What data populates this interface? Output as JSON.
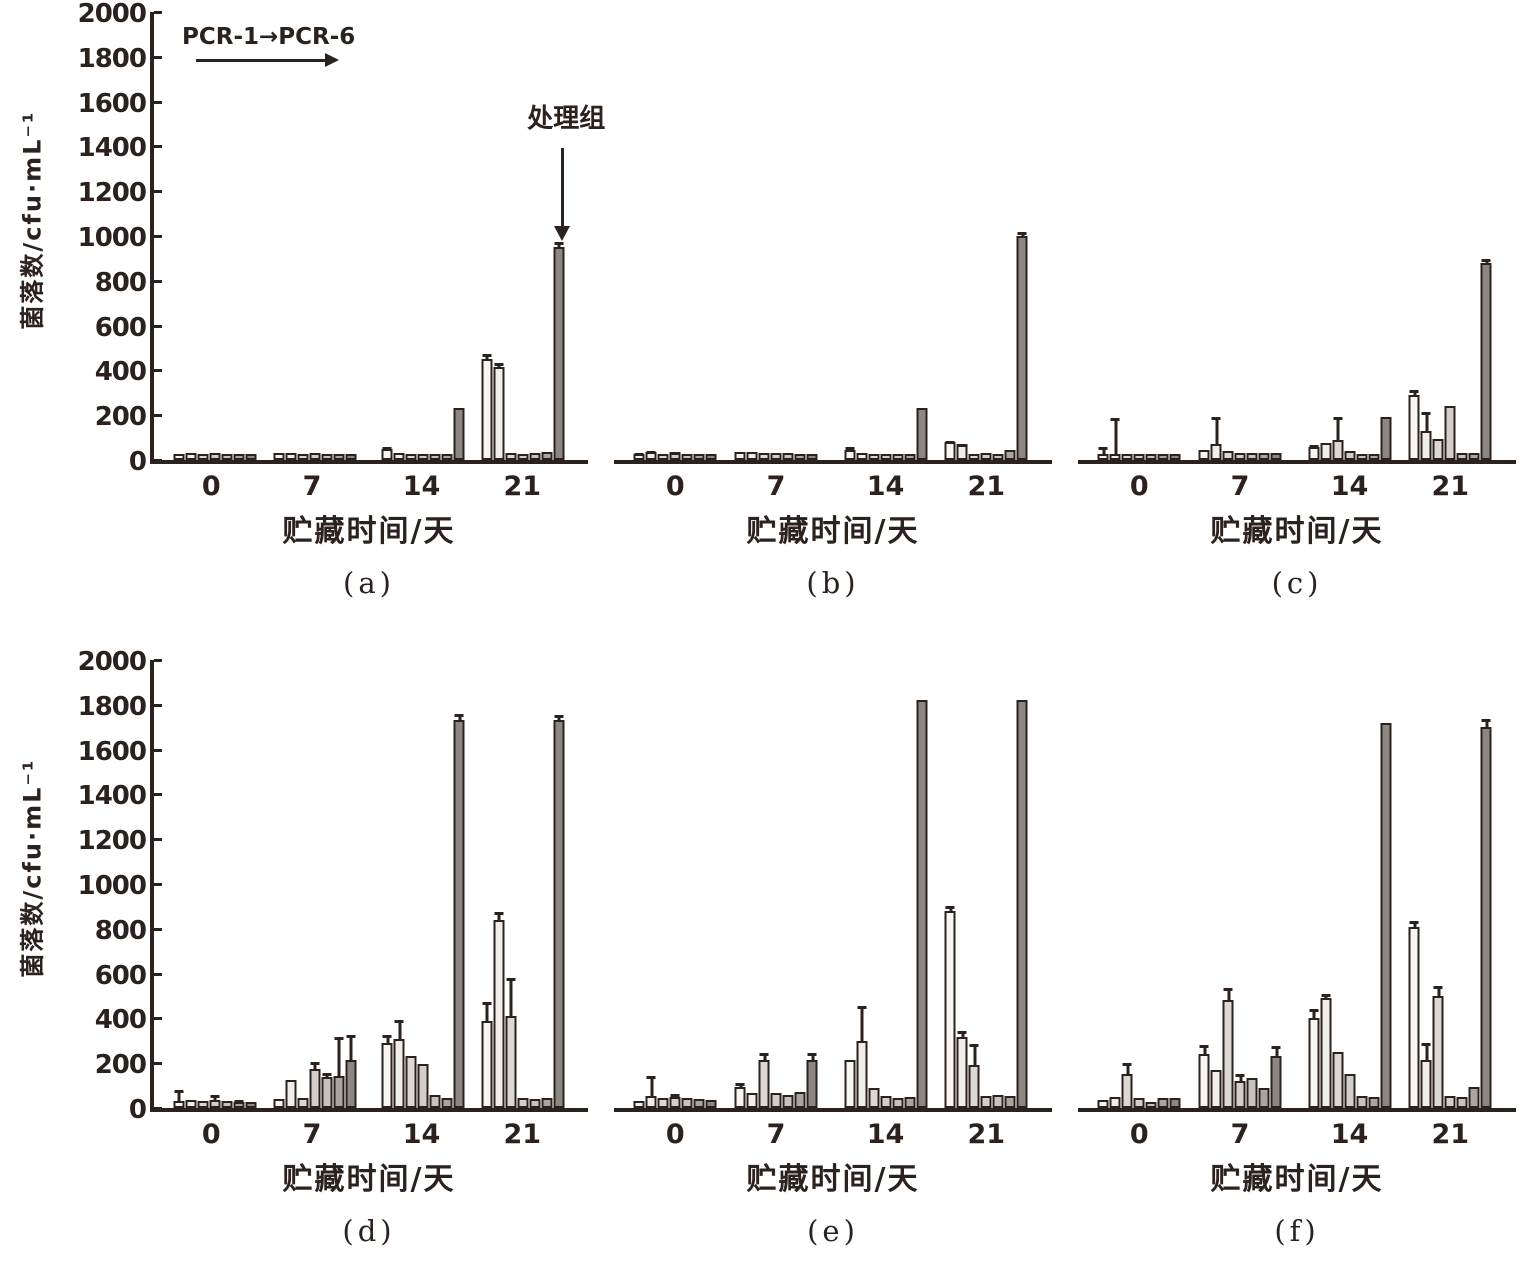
{
  "figure": {
    "legend_label": "PCR-1→PCR-6",
    "annotation": "处理组",
    "x_axis_title": "贮藏时间/天",
    "y_axis_title": "菌落数/cfu·mL⁻¹",
    "x_categories": [
      "0",
      "7",
      "14",
      "21"
    ],
    "y_ticks": [
      "2000",
      "1800",
      "1600",
      "1400",
      "1200",
      "1000",
      "800",
      "600",
      "400",
      "200",
      "0"
    ],
    "colors": {
      "ink": "#2b211d",
      "bar_series": [
        "#f7f6f3",
        "#efeeea",
        "#dcd9d4",
        "#d2cfca",
        "#c6c3bd",
        "#a9a6a0",
        "#8b8781"
      ],
      "treatment_bar": "#8b8781"
    }
  },
  "chart_data": [
    {
      "type": "bar",
      "panel": "a",
      "caption": "(a)",
      "xlabel": "贮藏时间/天",
      "ylabel": "菌落数/cfu·mL⁻¹",
      "ylim": [
        0,
        2000
      ],
      "grid": false,
      "series_order": "PCR-1 → PCR-6, 处理组",
      "categories": [
        "0",
        "7",
        "14",
        "21"
      ],
      "groups": [
        {
          "category": "0",
          "values": [
            25,
            30,
            28,
            32,
            25,
            22,
            20
          ],
          "errors": [
            0,
            0,
            0,
            0,
            0,
            0,
            0
          ]
        },
        {
          "category": "7",
          "values": [
            30,
            32,
            28,
            30,
            28,
            25,
            25
          ],
          "errors": [
            0,
            0,
            0,
            0,
            0,
            0,
            0
          ]
        },
        {
          "category": "14",
          "values": [
            50,
            30,
            25,
            28,
            25,
            25,
            230
          ],
          "errors": [
            15,
            0,
            0,
            0,
            0,
            0,
            0
          ]
        },
        {
          "category": "21",
          "values": [
            450,
            415,
            30,
            28,
            30,
            35,
            950
          ],
          "errors": [
            30,
            25,
            0,
            0,
            0,
            0,
            30
          ]
        }
      ]
    },
    {
      "type": "bar",
      "panel": "b",
      "caption": "(b)",
      "xlabel": "贮藏时间/天",
      "ylabel": "菌落数/cfu·mL⁻¹",
      "ylim": [
        0,
        2000
      ],
      "grid": false,
      "series_order": "PCR-1 → PCR-6, 处理组",
      "categories": [
        "0",
        "7",
        "14",
        "21"
      ],
      "groups": [
        {
          "category": "0",
          "values": [
            25,
            35,
            20,
            35,
            25,
            22,
            20
          ],
          "errors": [
            12,
            15,
            0,
            10,
            0,
            0,
            0
          ]
        },
        {
          "category": "7",
          "values": [
            35,
            38,
            30,
            32,
            30,
            28,
            28
          ],
          "errors": [
            0,
            0,
            0,
            0,
            0,
            0,
            0
          ]
        },
        {
          "category": "14",
          "values": [
            45,
            30,
            25,
            28,
            25,
            28,
            230
          ],
          "errors": [
            20,
            0,
            0,
            0,
            0,
            0,
            0
          ]
        },
        {
          "category": "21",
          "values": [
            80,
            70,
            25,
            30,
            28,
            45,
            1000
          ],
          "errors": [
            12,
            10,
            0,
            0,
            0,
            0,
            25
          ]
        }
      ]
    },
    {
      "type": "bar",
      "panel": "c",
      "caption": "(c)",
      "xlabel": "贮藏时间/天",
      "ylabel": "菌落数/cfu·mL⁻¹",
      "ylim": [
        0,
        2000
      ],
      "grid": false,
      "series_order": "PCR-1 → PCR-6, 处理组",
      "categories": [
        "0",
        "7",
        "14",
        "21"
      ],
      "groups": [
        {
          "category": "0",
          "values": [
            20,
            25,
            22,
            25,
            22,
            22,
            20
          ],
          "errors": [
            40,
            170,
            0,
            0,
            0,
            0,
            0
          ]
        },
        {
          "category": "7",
          "values": [
            45,
            70,
            40,
            32,
            30,
            30,
            30
          ],
          "errors": [
            0,
            130,
            0,
            0,
            0,
            0,
            0
          ]
        },
        {
          "category": "14",
          "values": [
            60,
            75,
            90,
            40,
            25,
            25,
            190
          ],
          "errors": [
            15,
            0,
            110,
            0,
            0,
            0,
            0
          ]
        },
        {
          "category": "21",
          "values": [
            290,
            130,
            95,
            240,
            30,
            30,
            880
          ],
          "errors": [
            30,
            95,
            0,
            0,
            0,
            0,
            25
          ]
        }
      ]
    },
    {
      "type": "bar",
      "panel": "d",
      "caption": "(d)",
      "xlabel": "贮藏时间/天",
      "ylabel": "菌落数/cfu·mL⁻¹",
      "ylim": [
        0,
        2000
      ],
      "grid": false,
      "series_order": "PCR-1 → PCR-6, 处理组",
      "categories": [
        "0",
        "7",
        "14",
        "21"
      ],
      "groups": [
        {
          "category": "0",
          "values": [
            30,
            35,
            30,
            35,
            30,
            28,
            25
          ],
          "errors": [
            60,
            0,
            0,
            30,
            0,
            15,
            0
          ]
        },
        {
          "category": "7",
          "values": [
            40,
            125,
            45,
            175,
            140,
            145,
            215
          ],
          "errors": [
            0,
            0,
            0,
            40,
            25,
            180,
            120
          ]
        },
        {
          "category": "14",
          "values": [
            290,
            310,
            230,
            195,
            60,
            45,
            1730
          ],
          "errors": [
            45,
            90,
            0,
            0,
            0,
            0,
            40
          ]
        },
        {
          "category": "21",
          "values": [
            390,
            840,
            410,
            45,
            40,
            45,
            1730
          ],
          "errors": [
            90,
            45,
            180,
            0,
            0,
            0,
            35
          ]
        }
      ]
    },
    {
      "type": "bar",
      "panel": "e",
      "caption": "(e)",
      "xlabel": "贮藏时间/天",
      "ylabel": "菌落数/cfu·mL⁻¹",
      "ylim": [
        0,
        2000
      ],
      "grid": false,
      "series_order": "PCR-1 → PCR-6, 处理组",
      "categories": [
        "0",
        "7",
        "14",
        "21"
      ],
      "groups": [
        {
          "category": "0",
          "values": [
            30,
            55,
            45,
            50,
            45,
            40,
            35
          ],
          "errors": [
            0,
            95,
            0,
            20,
            0,
            0,
            0
          ]
        },
        {
          "category": "7",
          "values": [
            95,
            65,
            215,
            65,
            60,
            70,
            215
          ],
          "errors": [
            25,
            0,
            40,
            0,
            0,
            0,
            40
          ]
        },
        {
          "category": "14",
          "values": [
            215,
            300,
            90,
            55,
            45,
            50,
            1820
          ],
          "errors": [
            0,
            165,
            0,
            0,
            0,
            0,
            0
          ]
        },
        {
          "category": "21",
          "values": [
            880,
            315,
            190,
            55,
            60,
            55,
            1820
          ],
          "errors": [
            30,
            40,
            105,
            0,
            0,
            0,
            0
          ]
        }
      ]
    },
    {
      "type": "bar",
      "panel": "f",
      "caption": "(f)",
      "xlabel": "贮藏时间/天",
      "ylabel": "菌落数/cfu·mL⁻¹",
      "ylim": [
        0,
        2000
      ],
      "grid": false,
      "series_order": "PCR-1 → PCR-6, 处理组",
      "categories": [
        "0",
        "7",
        "14",
        "21"
      ],
      "groups": [
        {
          "category": "0",
          "values": [
            35,
            50,
            150,
            45,
            20,
            45,
            45
          ],
          "errors": [
            0,
            0,
            60,
            0,
            0,
            0,
            0
          ]
        },
        {
          "category": "7",
          "values": [
            240,
            170,
            480,
            120,
            135,
            90,
            230
          ],
          "errors": [
            50,
            0,
            65,
            40,
            0,
            0,
            55
          ]
        },
        {
          "category": "14",
          "values": [
            400,
            490,
            250,
            150,
            55,
            50,
            1720
          ],
          "errors": [
            50,
            30,
            0,
            0,
            0,
            0,
            0
          ]
        },
        {
          "category": "21",
          "values": [
            810,
            215,
            500,
            55,
            50,
            95,
            1700
          ],
          "errors": [
            35,
            85,
            55,
            0,
            0,
            0,
            45
          ]
        }
      ]
    }
  ]
}
